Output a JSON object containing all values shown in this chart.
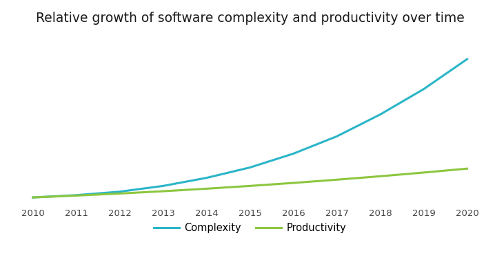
{
  "title": "Relative growth of software complexity and productivity over time",
  "title_fontsize": 13.5,
  "x_years": [
    2010,
    2011,
    2012,
    2013,
    2014,
    2015,
    2016,
    2017,
    2018,
    2019,
    2020
  ],
  "complexity_values": [
    1.0,
    1.1,
    1.25,
    1.5,
    1.85,
    2.3,
    2.9,
    3.65,
    4.6,
    5.7,
    7.0
  ],
  "productivity_values": [
    1.0,
    1.08,
    1.17,
    1.27,
    1.38,
    1.5,
    1.63,
    1.77,
    1.92,
    2.08,
    2.25
  ],
  "complexity_color": "#2BB5C8",
  "productivity_color": "#8DC63F",
  "line_width": 2.2,
  "background_color": "#FFFFFF",
  "grid_color": "#CCCCCC",
  "legend_labels": [
    "Complexity",
    "Productivity"
  ],
  "xlim_min": 2009.7,
  "xlim_max": 2020.3,
  "ylim_min": 0.7,
  "ylim_max": 8.2
}
